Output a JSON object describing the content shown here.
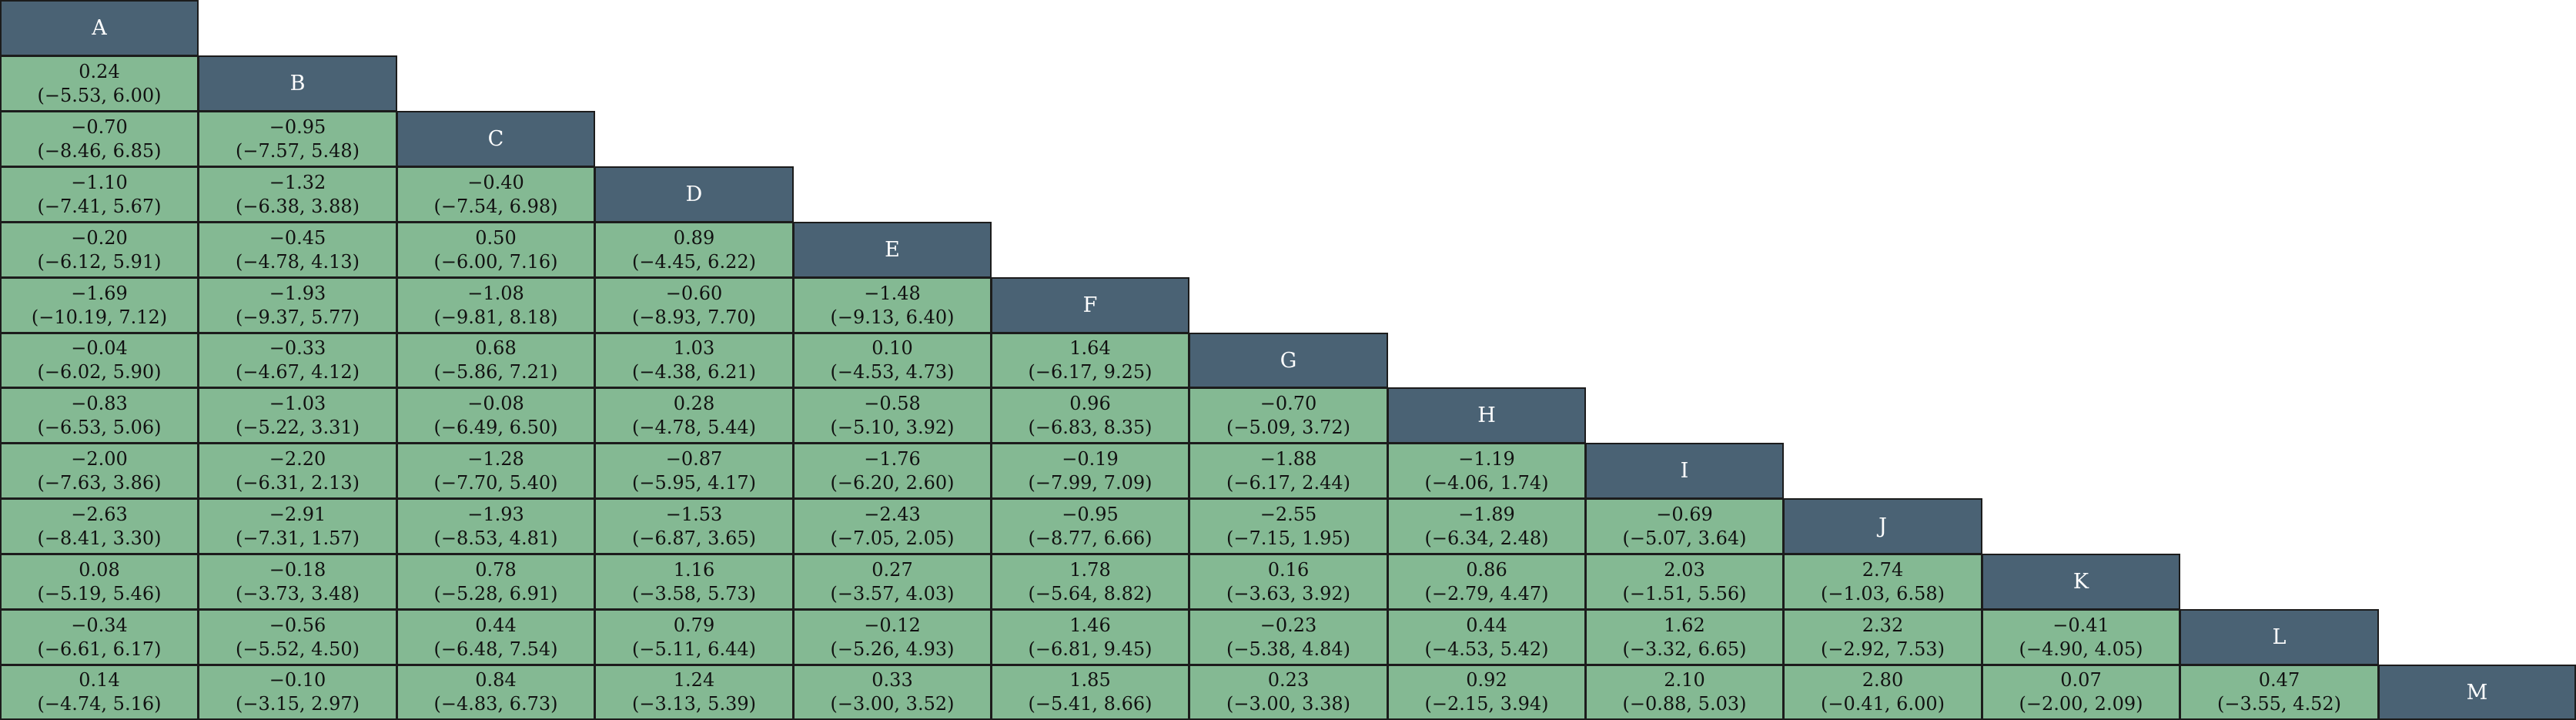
{
  "colors": {
    "header_bg": "#4a6274",
    "header_text": "#ffffff",
    "cell_bg": "#84b993",
    "border": "#1c1c1c"
  },
  "chart_data": {
    "type": "table",
    "treatments": [
      "A",
      "B",
      "C",
      "D",
      "E",
      "F",
      "G",
      "H",
      "I",
      "J",
      "K",
      "L",
      "M"
    ],
    "rows": [
      {
        "row": "B",
        "cells": [
          {
            "est": "0.24",
            "ci": "(−5.53, 6.00)"
          }
        ]
      },
      {
        "row": "C",
        "cells": [
          {
            "est": "−0.70",
            "ci": "(−8.46, 6.85)"
          },
          {
            "est": "−0.95",
            "ci": "(−7.57, 5.48)"
          }
        ]
      },
      {
        "row": "D",
        "cells": [
          {
            "est": "−1.10",
            "ci": "(−7.41, 5.67)"
          },
          {
            "est": "−1.32",
            "ci": "(−6.38, 3.88)"
          },
          {
            "est": "−0.40",
            "ci": "(−7.54, 6.98)"
          }
        ]
      },
      {
        "row": "E",
        "cells": [
          {
            "est": "−0.20",
            "ci": "(−6.12, 5.91)"
          },
          {
            "est": "−0.45",
            "ci": "(−4.78, 4.13)"
          },
          {
            "est": "0.50",
            "ci": "(−6.00, 7.16)"
          },
          {
            "est": "0.89",
            "ci": "(−4.45, 6.22)"
          }
        ]
      },
      {
        "row": "F",
        "cells": [
          {
            "est": "−1.69",
            "ci": "(−10.19, 7.12)"
          },
          {
            "est": "−1.93",
            "ci": "(−9.37, 5.77)"
          },
          {
            "est": "−1.08",
            "ci": "(−9.81, 8.18)"
          },
          {
            "est": "−0.60",
            "ci": "(−8.93, 7.70)"
          },
          {
            "est": "−1.48",
            "ci": "(−9.13, 6.40)"
          }
        ]
      },
      {
        "row": "G",
        "cells": [
          {
            "est": "−0.04",
            "ci": "(−6.02, 5.90)"
          },
          {
            "est": "−0.33",
            "ci": "(−4.67, 4.12)"
          },
          {
            "est": "0.68",
            "ci": "(−5.86, 7.21)"
          },
          {
            "est": "1.03",
            "ci": "(−4.38, 6.21)"
          },
          {
            "est": "0.10",
            "ci": "(−4.53, 4.73)"
          },
          {
            "est": "1.64",
            "ci": "(−6.17, 9.25)"
          }
        ]
      },
      {
        "row": "H",
        "cells": [
          {
            "est": "−0.83",
            "ci": "(−6.53, 5.06)"
          },
          {
            "est": "−1.03",
            "ci": "(−5.22, 3.31)"
          },
          {
            "est": "−0.08",
            "ci": "(−6.49, 6.50)"
          },
          {
            "est": "0.28",
            "ci": "(−4.78, 5.44)"
          },
          {
            "est": "−0.58",
            "ci": "(−5.10, 3.92)"
          },
          {
            "est": "0.96",
            "ci": "(−6.83, 8.35)"
          },
          {
            "est": "−0.70",
            "ci": "(−5.09, 3.72)"
          }
        ]
      },
      {
        "row": "I",
        "cells": [
          {
            "est": "−2.00",
            "ci": "(−7.63, 3.86)"
          },
          {
            "est": "−2.20",
            "ci": "(−6.31, 2.13)"
          },
          {
            "est": "−1.28",
            "ci": "(−7.70, 5.40)"
          },
          {
            "est": "−0.87",
            "ci": "(−5.95, 4.17)"
          },
          {
            "est": "−1.76",
            "ci": "(−6.20, 2.60)"
          },
          {
            "est": "−0.19",
            "ci": "(−7.99, 7.09)"
          },
          {
            "est": "−1.88",
            "ci": "(−6.17, 2.44)"
          },
          {
            "est": "−1.19",
            "ci": "(−4.06, 1.74)"
          }
        ]
      },
      {
        "row": "J",
        "cells": [
          {
            "est": "−2.63",
            "ci": "(−8.41, 3.30)"
          },
          {
            "est": "−2.91",
            "ci": "(−7.31, 1.57)"
          },
          {
            "est": "−1.93",
            "ci": "(−8.53, 4.81)"
          },
          {
            "est": "−1.53",
            "ci": "(−6.87, 3.65)"
          },
          {
            "est": "−2.43",
            "ci": "(−7.05, 2.05)"
          },
          {
            "est": "−0.95",
            "ci": "(−8.77, 6.66)"
          },
          {
            "est": "−2.55",
            "ci": "(−7.15, 1.95)"
          },
          {
            "est": "−1.89",
            "ci": "(−6.34, 2.48)"
          },
          {
            "est": "−0.69",
            "ci": "(−5.07, 3.64)"
          }
        ]
      },
      {
        "row": "K",
        "cells": [
          {
            "est": "0.08",
            "ci": "(−5.19, 5.46)"
          },
          {
            "est": "−0.18",
            "ci": "(−3.73, 3.48)"
          },
          {
            "est": "0.78",
            "ci": "(−5.28, 6.91)"
          },
          {
            "est": "1.16",
            "ci": "(−3.58, 5.73)"
          },
          {
            "est": "0.27",
            "ci": "(−3.57, 4.03)"
          },
          {
            "est": "1.78",
            "ci": "(−5.64, 8.82)"
          },
          {
            "est": "0.16",
            "ci": "(−3.63, 3.92)"
          },
          {
            "est": "0.86",
            "ci": "(−2.79, 4.47)"
          },
          {
            "est": "2.03",
            "ci": "(−1.51, 5.56)"
          },
          {
            "est": "2.74",
            "ci": "(−1.03, 6.58)"
          }
        ]
      },
      {
        "row": "L",
        "cells": [
          {
            "est": "−0.34",
            "ci": "(−6.61, 6.17)"
          },
          {
            "est": "−0.56",
            "ci": "(−5.52, 4.50)"
          },
          {
            "est": "0.44",
            "ci": "(−6.48, 7.54)"
          },
          {
            "est": "0.79",
            "ci": "(−5.11, 6.44)"
          },
          {
            "est": "−0.12",
            "ci": "(−5.26, 4.93)"
          },
          {
            "est": "1.46",
            "ci": "(−6.81, 9.45)"
          },
          {
            "est": "−0.23",
            "ci": "(−5.38, 4.84)"
          },
          {
            "est": "0.44",
            "ci": "(−4.53, 5.42)"
          },
          {
            "est": "1.62",
            "ci": "(−3.32, 6.65)"
          },
          {
            "est": "2.32",
            "ci": "(−2.92, 7.53)"
          },
          {
            "est": "−0.41",
            "ci": "(−4.90, 4.05)"
          }
        ]
      },
      {
        "row": "M",
        "cells": [
          {
            "est": "0.14",
            "ci": "(−4.74, 5.16)"
          },
          {
            "est": "−0.10",
            "ci": "(−3.15, 2.97)"
          },
          {
            "est": "0.84",
            "ci": "(−4.83, 6.73)"
          },
          {
            "est": "1.24",
            "ci": "(−3.13, 5.39)"
          },
          {
            "est": "0.33",
            "ci": "(−3.00, 3.52)"
          },
          {
            "est": "1.85",
            "ci": "(−5.41, 8.66)"
          },
          {
            "est": "0.23",
            "ci": "(−3.00, 3.38)"
          },
          {
            "est": "0.92",
            "ci": "(−2.15, 3.94)"
          },
          {
            "est": "2.10",
            "ci": "(−0.88, 5.03)"
          },
          {
            "est": "2.80",
            "ci": "(−0.41, 6.00)"
          },
          {
            "est": "0.07",
            "ci": "(−2.00, 2.09)"
          },
          {
            "est": "0.47",
            "ci": "(−3.55, 4.52)"
          }
        ]
      }
    ]
  }
}
